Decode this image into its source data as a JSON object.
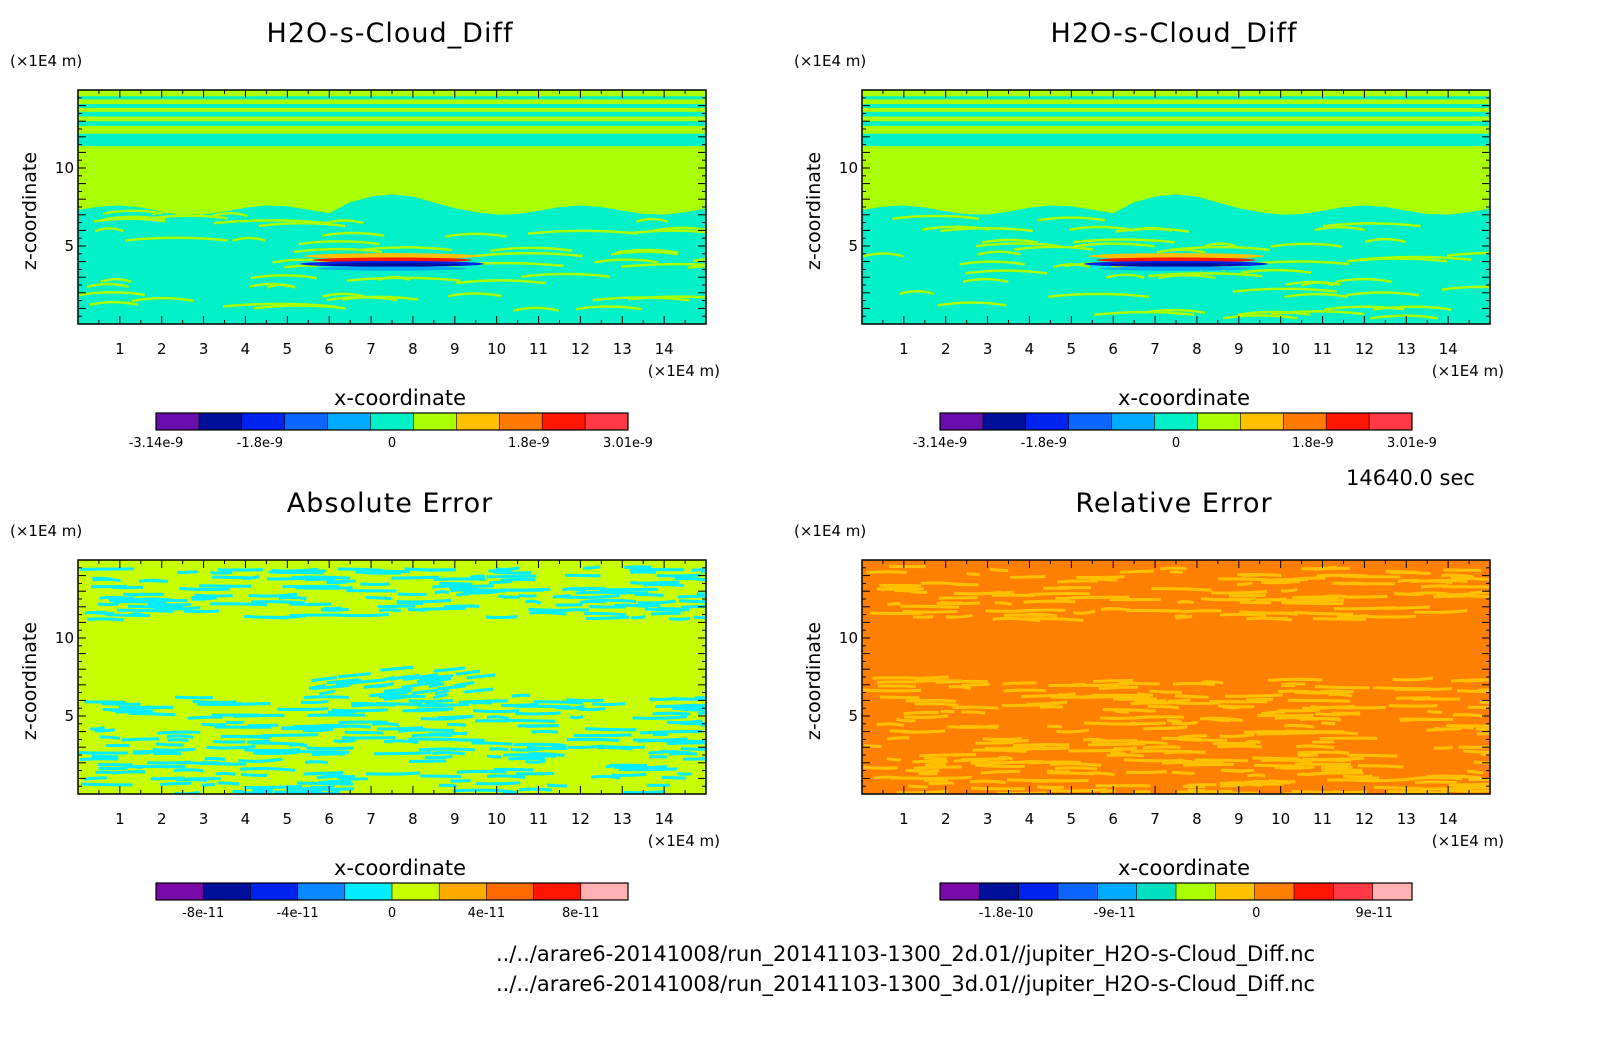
{
  "time_label": "14640.0 sec",
  "footer_lines": [
    "../../arare6-20141008/run_20141103-1300_2d.01//jupiter_H2O-s-Cloud_Diff.nc",
    "../../arare6-20141008/run_20141103-1300_3d.01//jupiter_H2O-s-Cloud_Diff.nc"
  ],
  "chart_data": [
    {
      "type": "heatmap",
      "title": "H2O-s-Cloud_Diff",
      "xlabel": "x-coordinate",
      "ylabel": "z-coordinate",
      "x_unit": "(×1E4 m)",
      "y_unit": "(×1E4 m)",
      "xlim": [
        0,
        15
      ],
      "ylim": [
        0,
        15
      ],
      "x_ticks": [
        "1",
        "2",
        "3",
        "4",
        "5",
        "6",
        "7",
        "8",
        "9",
        "10",
        "11",
        "12",
        "13",
        "14"
      ],
      "y_ticks": [
        "5",
        "10"
      ],
      "colorbar": {
        "colors": [
          "#6a0dad",
          "#00109a",
          "#0022ee",
          "#0a66ff",
          "#00aaff",
          "#00f0c8",
          "#aaff00",
          "#ffc000",
          "#ff7a00",
          "#ff1500",
          "#ff3a45"
        ],
        "labels": [
          "-3.14e-9",
          "-1.8e-9",
          "0",
          "1.8e-9",
          "3.01e-9"
        ],
        "label_positions": [
          0,
          0.22,
          0.5,
          0.79,
          1.0
        ],
        "range": [
          -3.14e-09,
          3.01e-09
        ]
      },
      "pattern": "cloud"
    },
    {
      "type": "heatmap",
      "title": "H2O-s-Cloud_Diff",
      "xlabel": "x-coordinate",
      "ylabel": "z-coordinate",
      "x_unit": "(×1E4 m)",
      "y_unit": "(×1E4 m)",
      "xlim": [
        0,
        15
      ],
      "ylim": [
        0,
        15
      ],
      "x_ticks": [
        "1",
        "2",
        "3",
        "4",
        "5",
        "6",
        "7",
        "8",
        "9",
        "10",
        "11",
        "12",
        "13",
        "14"
      ],
      "y_ticks": [
        "5",
        "10"
      ],
      "colorbar": {
        "colors": [
          "#6a0dad",
          "#00109a",
          "#0022ee",
          "#0a66ff",
          "#00aaff",
          "#00f0c8",
          "#aaff00",
          "#ffc000",
          "#ff7a00",
          "#ff1500",
          "#ff3a45"
        ],
        "labels": [
          "-3.14e-9",
          "-1.8e-9",
          "0",
          "1.8e-9",
          "3.01e-9"
        ],
        "label_positions": [
          0,
          0.22,
          0.5,
          0.79,
          1.0
        ],
        "range": [
          -3.14e-09,
          3.01e-09
        ]
      },
      "pattern": "cloud"
    },
    {
      "type": "heatmap",
      "title": "Absolute Error",
      "xlabel": "x-coordinate",
      "ylabel": "z-coordinate",
      "x_unit": "(×1E4 m)",
      "y_unit": "(×1E4 m)",
      "xlim": [
        0,
        15
      ],
      "ylim": [
        0,
        15
      ],
      "x_ticks": [
        "1",
        "2",
        "3",
        "4",
        "5",
        "6",
        "7",
        "8",
        "9",
        "10",
        "11",
        "12",
        "13",
        "14"
      ],
      "y_ticks": [
        "5",
        "10"
      ],
      "colorbar": {
        "colors": [
          "#7a0aa8",
          "#00109a",
          "#0022ee",
          "#0a88ff",
          "#00eeff",
          "#c8ff00",
          "#ffaa00",
          "#ff6a00",
          "#ff1500",
          "#ffb0b0"
        ],
        "labels": [
          "-8e-11",
          "-4e-11",
          "0",
          "4e-11",
          "8e-11"
        ],
        "label_positions": [
          0.1,
          0.3,
          0.5,
          0.7,
          0.9
        ],
        "range": [
          -1e-10,
          1e-10
        ]
      },
      "pattern": "abs"
    },
    {
      "type": "heatmap",
      "title": "Relative Error",
      "xlabel": "x-coordinate",
      "ylabel": "z-coordinate",
      "x_unit": "(×1E4 m)",
      "y_unit": "(×1E4 m)",
      "xlim": [
        0,
        15
      ],
      "ylim": [
        0,
        15
      ],
      "x_ticks": [
        "1",
        "2",
        "3",
        "4",
        "5",
        "6",
        "7",
        "8",
        "9",
        "10",
        "11",
        "12",
        "13",
        "14"
      ],
      "y_ticks": [
        "5",
        "10"
      ],
      "colorbar": {
        "colors": [
          "#7a0aa8",
          "#00109a",
          "#0022ee",
          "#0a66ff",
          "#00aaff",
          "#00e0c0",
          "#aaff00",
          "#ffc000",
          "#ff8000",
          "#ff1500",
          "#ff3a45",
          "#ffb0b0"
        ],
        "labels": [
          "-1.8e-10",
          "-9e-11",
          "0",
          "9e-11"
        ],
        "label_positions": [
          0.14,
          0.37,
          0.67,
          0.92
        ],
        "range": [
          -2.5e-10,
          1.2e-10
        ]
      },
      "pattern": "rel"
    }
  ]
}
